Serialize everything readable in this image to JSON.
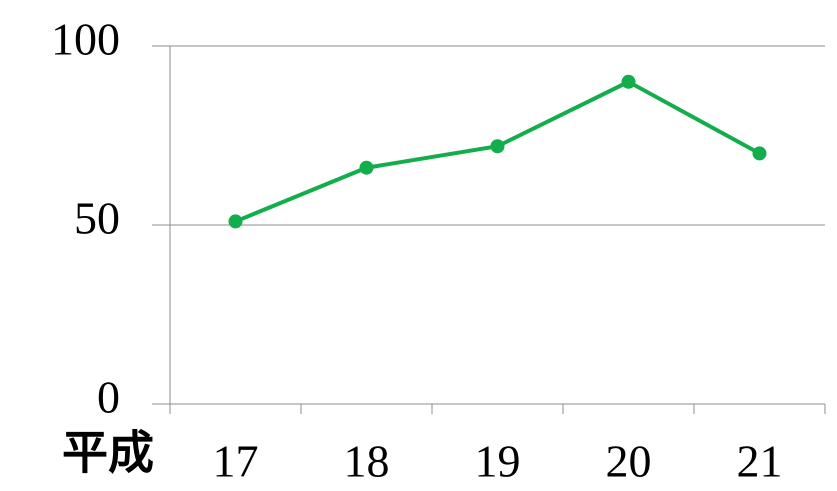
{
  "chart_data": {
    "type": "line",
    "x_label": "平成",
    "categories": [
      "17",
      "18",
      "19",
      "20",
      "21"
    ],
    "series": [
      {
        "name": null,
        "color": "#14ad4c",
        "values": [
          51,
          66,
          72,
          90,
          70
        ]
      }
    ],
    "ylim": [
      0,
      100
    ],
    "yticks": [
      0,
      50,
      100
    ],
    "grid": true
  }
}
